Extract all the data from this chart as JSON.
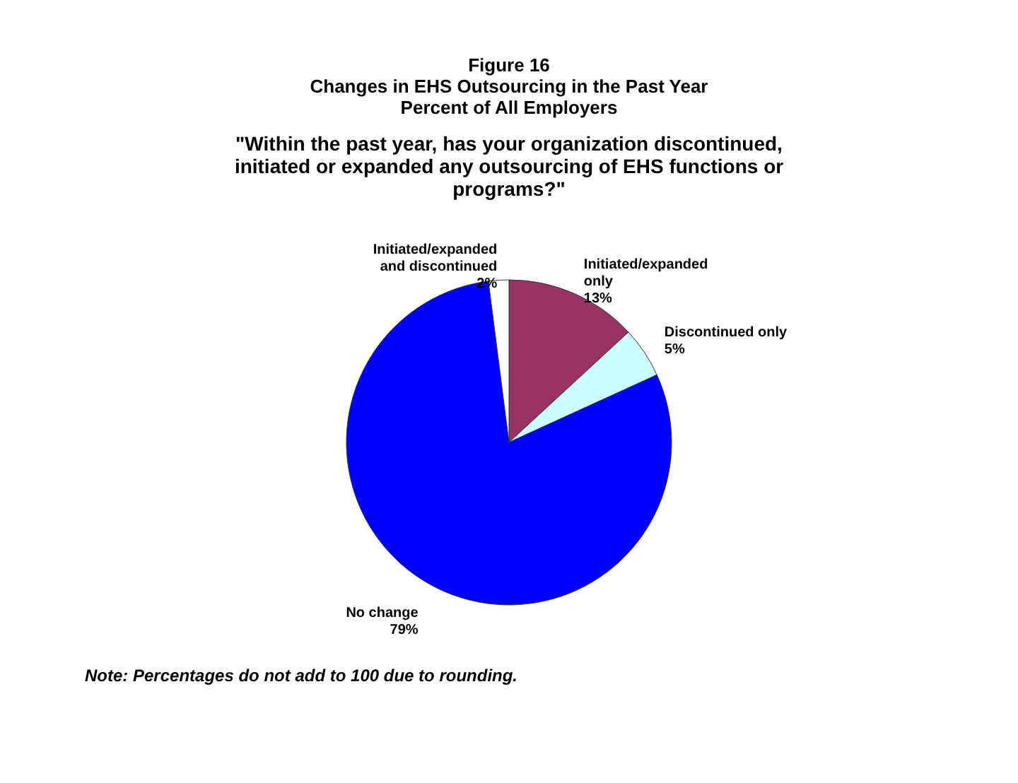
{
  "chart_data": {
    "type": "pie",
    "title": [
      "Figure 16",
      "Changes in EHS Outsourcing in the Past Year",
      "Percent of All Employers"
    ],
    "subtitle": [
      "\"Within the past year, has your organization discontinued,",
      "initiated or expanded any outsourcing of EHS functions or",
      "programs?\""
    ],
    "categories": [
      "Initiated/expanded only",
      "Discontinued only",
      "No change",
      "Initiated/expanded and discontinued"
    ],
    "values": [
      13,
      5,
      79,
      2
    ],
    "colors": [
      "#993366",
      "#ccffff",
      "#0000ff",
      "#ffffff"
    ],
    "value_labels": [
      "13%",
      "5%",
      "79%",
      "2%"
    ],
    "legend": false,
    "annotations": [
      "Note: Percentages do not add to 100 due to rounding."
    ]
  }
}
